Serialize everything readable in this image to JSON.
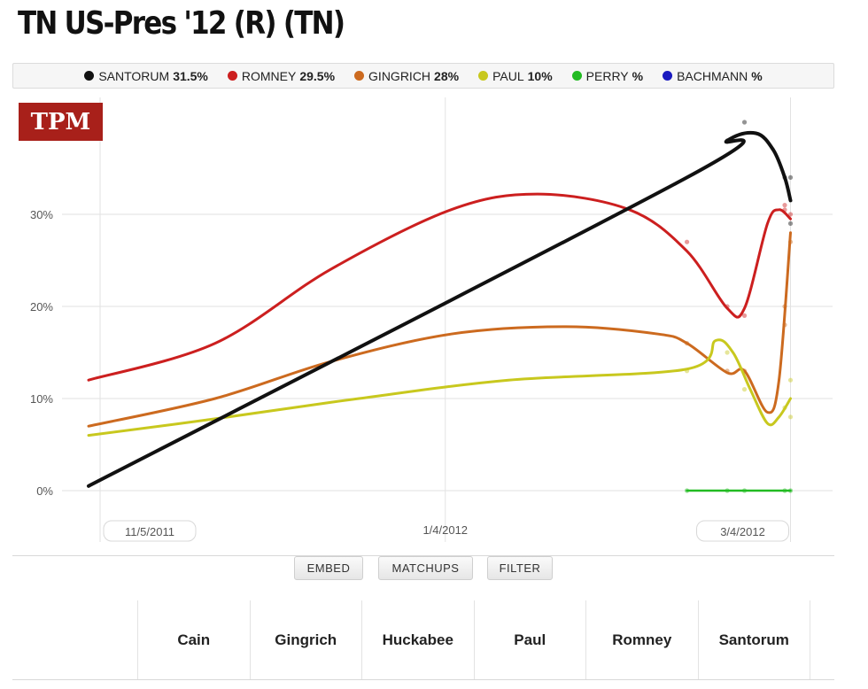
{
  "page": {
    "title": "TN US-Pres '12 (R) (TN)"
  },
  "legend": [
    {
      "name": "SANTORUM",
      "value": "31.5%",
      "color": "#111111"
    },
    {
      "name": "ROMNEY",
      "value": "29.5%",
      "color": "#cc1f1f"
    },
    {
      "name": "GINGRICH",
      "value": "28%",
      "color": "#cc6a1f"
    },
    {
      "name": "PAUL",
      "value": "10%",
      "color": "#c8c81e"
    },
    {
      "name": "PERRY",
      "value": "%",
      "color": "#22bb22"
    },
    {
      "name": "BACHMANN",
      "value": "%",
      "color": "#1a1ac0"
    }
  ],
  "logo": {
    "text": "TPM",
    "color": "#a8201a"
  },
  "chart_data": {
    "type": "line",
    "yticks": [
      "0%",
      "10%",
      "20%",
      "30%"
    ],
    "ylim": [
      0,
      40
    ],
    "xlim": [
      "2011-11-03",
      "2012-03-07"
    ],
    "x_tick_labels": [
      {
        "date": "2011-11-05",
        "label": "11/5/2011"
      },
      {
        "date": "2012-01-04",
        "label": "1/4/2012"
      },
      {
        "date": "2012-03-04",
        "label": "3/4/2012"
      }
    ],
    "grid": true,
    "series": [
      {
        "name": "ROMNEY",
        "color": "#cc1f1f",
        "trend": [
          [
            "2011-11-03",
            12
          ],
          [
            "2011-11-25",
            16
          ],
          [
            "2011-12-15",
            24
          ],
          [
            "2012-01-05",
            30.5
          ],
          [
            "2012-01-20",
            32.2
          ],
          [
            "2012-02-05",
            30.5
          ],
          [
            "2012-02-15",
            26
          ],
          [
            "2012-02-22",
            19.8
          ],
          [
            "2012-02-25",
            19.8
          ],
          [
            "2012-02-29",
            29
          ],
          [
            "2012-03-02",
            30.5
          ],
          [
            "2012-03-04",
            29.5
          ]
        ],
        "points": [
          [
            "2012-02-15",
            27
          ],
          [
            "2012-02-22",
            20
          ],
          [
            "2012-02-25",
            19
          ],
          [
            "2012-03-03",
            31
          ],
          [
            "2012-03-03",
            30.5
          ],
          [
            "2012-03-04",
            30
          ]
        ]
      },
      {
        "name": "GINGRICH",
        "color": "#cc6a1f",
        "trend": [
          [
            "2011-11-03",
            7
          ],
          [
            "2011-11-25",
            10
          ],
          [
            "2011-12-15",
            14
          ],
          [
            "2012-01-05",
            17
          ],
          [
            "2012-01-25",
            17.8
          ],
          [
            "2012-02-10",
            17
          ],
          [
            "2012-02-15",
            16
          ],
          [
            "2012-02-22",
            12.8
          ],
          [
            "2012-02-25",
            13
          ],
          [
            "2012-02-29",
            8.5
          ],
          [
            "2012-03-02",
            12
          ],
          [
            "2012-03-04",
            28
          ]
        ],
        "points": [
          [
            "2012-02-15",
            16
          ],
          [
            "2012-02-22",
            13
          ],
          [
            "2012-02-25",
            13
          ],
          [
            "2012-03-03",
            18
          ],
          [
            "2012-03-03",
            20
          ],
          [
            "2012-03-04",
            27
          ]
        ]
      },
      {
        "name": "PAUL",
        "color": "#c8c81e",
        "trend": [
          [
            "2011-11-03",
            6
          ],
          [
            "2011-11-25",
            7.8
          ],
          [
            "2011-12-20",
            10
          ],
          [
            "2012-01-15",
            12
          ],
          [
            "2012-02-15",
            13.2
          ],
          [
            "2012-02-20",
            16.3
          ],
          [
            "2012-02-23",
            15
          ],
          [
            "2012-02-26",
            11
          ],
          [
            "2012-02-29",
            7.3
          ],
          [
            "2012-03-02",
            8
          ],
          [
            "2012-03-04",
            10
          ]
        ],
        "points": [
          [
            "2012-02-15",
            13
          ],
          [
            "2012-02-22",
            15
          ],
          [
            "2012-02-25",
            11
          ],
          [
            "2012-03-03",
            9
          ],
          [
            "2012-03-04",
            12
          ],
          [
            "2012-03-04",
            8
          ]
        ]
      },
      {
        "name": "SANTORUM",
        "color": "#111111",
        "trend": [
          [
            "2011-11-03",
            0.5
          ],
          [
            "2012-02-15",
            34
          ],
          [
            "2012-02-22",
            38
          ],
          [
            "2012-02-27",
            38.8
          ],
          [
            "2012-03-01",
            37
          ],
          [
            "2012-03-03",
            34
          ],
          [
            "2012-03-04",
            31.5
          ]
        ],
        "points": [
          [
            "2012-02-22",
            38
          ],
          [
            "2012-02-25",
            40
          ],
          [
            "2012-03-03",
            34
          ],
          [
            "2012-03-04",
            34
          ],
          [
            "2012-03-04",
            29
          ]
        ]
      },
      {
        "name": "PERRY",
        "color": "#22bb22",
        "trend": [
          [
            "2012-02-15",
            0
          ],
          [
            "2012-03-04",
            0
          ]
        ],
        "points": [
          [
            "2012-02-15",
            0
          ],
          [
            "2012-02-22",
            0
          ],
          [
            "2012-02-25",
            0
          ],
          [
            "2012-03-03",
            0
          ],
          [
            "2012-03-04",
            0
          ]
        ]
      }
    ]
  },
  "buttons": {
    "embed": "EMBED",
    "matchups": "MATCHUPS",
    "filter": "FILTER"
  },
  "candidates": [
    "Cain",
    "Gingrich",
    "Huckabee",
    "Paul",
    "Romney",
    "Santorum"
  ]
}
